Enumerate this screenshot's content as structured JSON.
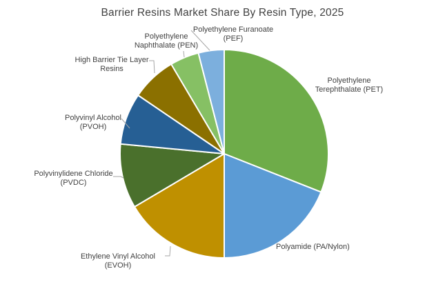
{
  "page": {
    "background_color": "#FFFFFF"
  },
  "chart": {
    "title_color": "#404040",
    "label_color": "#404040",
    "leader_line_color": "#A6A6A6",
    "slice_border_color": "#FFFFFF"
  },
  "chart_data": {
    "type": "pie",
    "title": "Barrier Resins Market Share By Resin Type, 2025",
    "start_angle_deg": 0,
    "direction": "clockwise",
    "legend": "none",
    "labels_position": "outside with leader lines",
    "values_unit": "percent of market share (estimated from slice angles; no numeric data labels shown)",
    "slices": [
      {
        "label": "Polyethylene Terephthalate (PET)",
        "value": 31,
        "color": "#6EAC49"
      },
      {
        "label": "Polyamide (PA/Nylon)",
        "value": 19,
        "color": "#5B9BD5"
      },
      {
        "label": "Ethylene Vinyl Alcohol (EVOH)",
        "value": 16.5,
        "color": "#BF9000"
      },
      {
        "label": "Polyvinylidene Chloride (PVDC)",
        "value": 10,
        "color": "#4A702C"
      },
      {
        "label": "Polyvinyl Alcohol (PVOH)",
        "value": 8,
        "color": "#265F94"
      },
      {
        "label": "High Barrier Tie Layer Resins",
        "value": 7,
        "color": "#8B7000"
      },
      {
        "label": "Polyethylene Naphthalate (PEN)",
        "value": 4.5,
        "color": "#86C064"
      },
      {
        "label": "Polyethylene Furanoate (PEF)",
        "value": 4,
        "color": "#7CAFDD"
      }
    ]
  }
}
